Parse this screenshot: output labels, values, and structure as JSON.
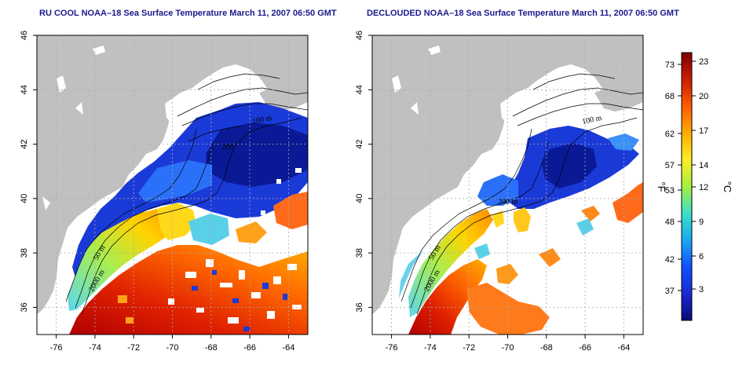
{
  "titles": {
    "left": "RU COOL NOAA–18 Sea Surface Temperature March 11, 2007 06:50 GMT",
    "right": "DECLOUDED NOAA–18 Sea Surface Temperature March 11, 2007 06:50 GMT"
  },
  "map_extent": {
    "lon": [
      -77,
      -63
    ],
    "lat": [
      35,
      46
    ]
  },
  "x_ticks": [
    -76,
    -74,
    -72,
    -70,
    -68,
    -66,
    -64
  ],
  "y_ticks": [
    36,
    38,
    40,
    42,
    44,
    46
  ],
  "contour_labels_left": [
    "100 m",
    "200",
    "50 m",
    "2000 m"
  ],
  "contour_labels_right": [
    "100 m",
    "200 m",
    "50 m",
    "2000 m"
  ],
  "colorbar": {
    "fahrenheit_label": "°F",
    "celsius_label": "°C",
    "fahrenheit_ticks": [
      "73",
      "68",
      "62",
      "57",
      "53",
      "48",
      "42",
      "37"
    ],
    "celsius_ticks": [
      "23",
      "20",
      "17",
      "14",
      "12",
      "9",
      "6",
      "3"
    ],
    "colors": [
      "#7f0000",
      "#c81e00",
      "#ff5a00",
      "#ffae00",
      "#ffee22",
      "#a4f040",
      "#3ce0c8",
      "#1aa8f0",
      "#1050ff",
      "#1a2ad2",
      "#0a0a78"
    ]
  },
  "colors": {
    "land": "#c0c0c0",
    "title": "#1a1a8c",
    "grid": "#aaaaaa"
  }
}
